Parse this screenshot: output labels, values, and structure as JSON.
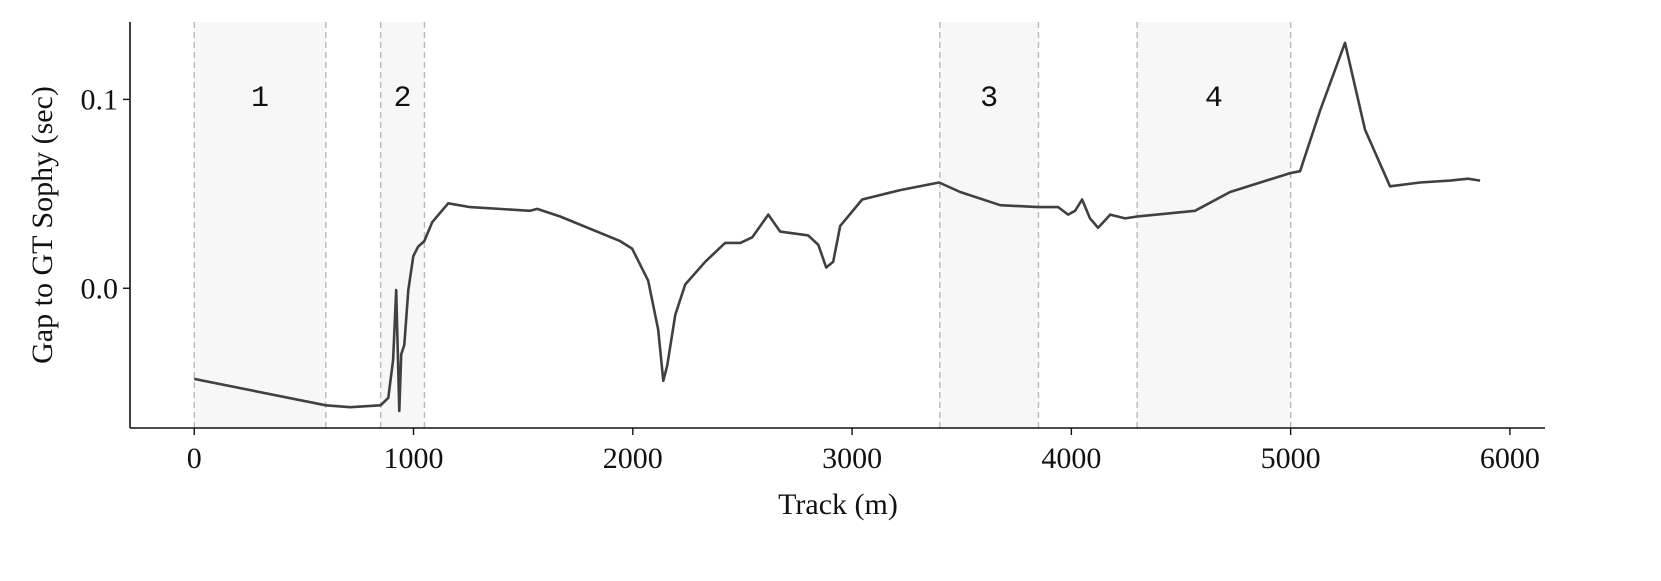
{
  "chart_data": {
    "type": "line",
    "xlabel": "Track (m)",
    "ylabel": "Gap to GT Sophy (sec)",
    "x": [
      0,
      600,
      711,
      850,
      885,
      907,
      921,
      935,
      944,
      958,
      976,
      999,
      1021,
      1049,
      1085,
      1158,
      1258,
      1532,
      1564,
      1669,
      1942,
      1997,
      2070,
      2116,
      2139,
      2157,
      2194,
      2239,
      2330,
      2421,
      2490,
      2545,
      2618,
      2672,
      2800,
      2846,
      2882,
      2914,
      2946,
      3046,
      3219,
      3397,
      3493,
      3676,
      3849,
      3940,
      3985,
      4017,
      4049,
      4085,
      4122,
      4154,
      4177,
      4245,
      4300,
      4564,
      4724,
      4998,
      5043,
      5134,
      5248,
      5339,
      5453,
      5590,
      5727,
      5809,
      5864
    ],
    "y": [
      -0.048,
      -0.062,
      -0.063,
      -0.062,
      -0.058,
      -0.038,
      -0.001,
      -0.065,
      -0.035,
      -0.03,
      -0.001,
      0.017,
      0.022,
      0.025,
      0.035,
      0.045,
      0.043,
      0.041,
      0.042,
      0.038,
      0.025,
      0.021,
      0.004,
      -0.022,
      -0.049,
      -0.041,
      -0.014,
      0.002,
      0.014,
      0.024,
      0.024,
      0.027,
      0.039,
      0.03,
      0.028,
      0.023,
      0.011,
      0.014,
      0.033,
      0.047,
      0.052,
      0.056,
      0.051,
      0.044,
      0.043,
      0.043,
      0.039,
      0.041,
      0.047,
      0.037,
      0.032,
      0.036,
      0.039,
      0.037,
      0.038,
      0.041,
      0.051,
      0.061,
      0.062,
      0.094,
      0.13,
      0.084,
      0.054,
      0.056,
      0.057,
      0.058,
      0.057
    ],
    "color": "#404040",
    "regions": [
      {
        "label": "1",
        "start": 0,
        "end": 600
      },
      {
        "label": "2",
        "start": 850,
        "end": 1050
      },
      {
        "label": "3",
        "start": 3400,
        "end": 3850
      },
      {
        "label": "4",
        "start": 4300,
        "end": 5000
      }
    ],
    "xlim": [
      -293,
      6160
    ],
    "xticks": [
      0,
      1000,
      2000,
      3000,
      4000,
      5000,
      6000
    ],
    "ylim": [
      -0.074,
      0.141
    ],
    "yticks": [
      {
        "value": 0,
        "label": "0.0"
      },
      0.1
    ]
  }
}
